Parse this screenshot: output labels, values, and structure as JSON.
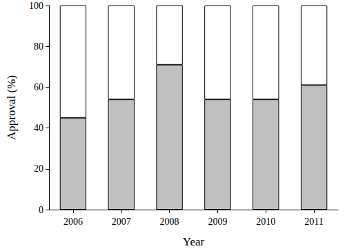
{
  "chart_data": {
    "type": "bar",
    "stacked": true,
    "categories": [
      "2006",
      "2007",
      "2008",
      "2009",
      "2010",
      "2011"
    ],
    "series": [
      {
        "color": "#c0c0c0",
        "values": [
          45,
          54,
          71,
          54,
          54,
          61
        ]
      },
      {
        "color": "#ffffff",
        "values": [
          55,
          46,
          29,
          46,
          46,
          39
        ]
      }
    ],
    "xlabel": "Year",
    "ylabel": "Approval (%)",
    "ylim": [
      0,
      100
    ],
    "yticks": [
      0,
      20,
      40,
      60,
      80,
      100
    ],
    "grid": false
  }
}
